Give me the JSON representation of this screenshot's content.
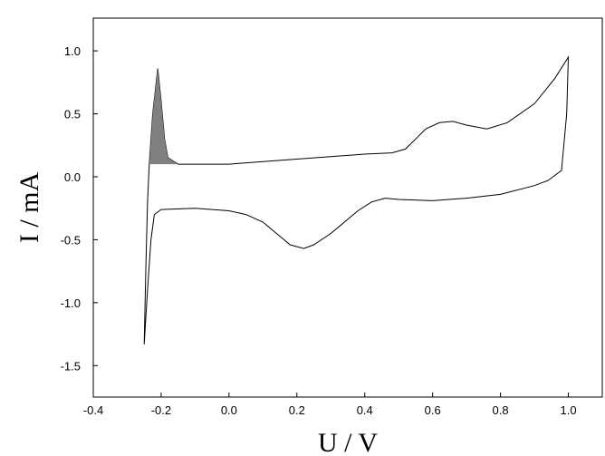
{
  "chart_data": {
    "type": "line",
    "xlabel": "U / V",
    "ylabel": "I / mA",
    "xlim": [
      -0.4,
      1.1
    ],
    "ylim": [
      -1.75,
      1.26
    ],
    "xticks": [
      -0.4,
      -0.2,
      {
        "value": 0,
        "label": "0.0"
      },
      0.2,
      0.4,
      0.6,
      0.8,
      {
        "value": 1,
        "label": "1.0"
      }
    ],
    "yticks": [
      -1.5,
      {
        "value": -1,
        "label": "-1.0"
      },
      -0.5,
      {
        "value": 0,
        "label": "0.0"
      },
      0.5,
      {
        "value": 1,
        "label": "1.0"
      }
    ],
    "series": [
      {
        "color": "#000000",
        "fill": false,
        "x": [
          -0.25,
          -0.245,
          -0.24,
          -0.235,
          -0.225,
          -0.21,
          -0.2,
          -0.19,
          -0.18,
          -0.15,
          -0.1,
          0.0,
          0.1,
          0.2,
          0.3,
          0.4,
          0.48,
          0.52,
          0.55,
          0.58,
          0.62,
          0.66,
          0.7,
          0.76,
          0.82,
          0.9,
          0.96,
          1.0,
          0.995,
          0.98,
          0.94,
          0.9,
          0.8,
          0.7,
          0.6,
          0.5,
          0.46,
          0.42,
          0.38,
          0.3,
          0.25,
          0.22,
          0.18,
          0.14,
          0.1,
          0.05,
          0.0,
          -0.1,
          -0.2,
          -0.22,
          -0.23,
          -0.24,
          -0.25
        ],
        "values": [
          -1.33,
          -0.7,
          -0.2,
          0.1,
          0.5,
          0.86,
          0.6,
          0.3,
          0.15,
          0.1,
          0.1,
          0.1,
          0.12,
          0.14,
          0.16,
          0.18,
          0.19,
          0.22,
          0.3,
          0.38,
          0.43,
          0.44,
          0.41,
          0.38,
          0.43,
          0.58,
          0.78,
          0.95,
          0.5,
          0.05,
          -0.03,
          -0.07,
          -0.14,
          -0.17,
          -0.19,
          -0.18,
          -0.17,
          -0.2,
          -0.27,
          -0.45,
          -0.54,
          -0.57,
          -0.54,
          -0.45,
          -0.36,
          -0.3,
          -0.27,
          -0.25,
          -0.26,
          -0.3,
          -0.5,
          -0.9,
          -1.33
        ]
      },
      {
        "color": "#808080",
        "fill": true,
        "x": [
          -0.235,
          -0.225,
          -0.21,
          -0.2,
          -0.19,
          -0.18,
          -0.15
        ],
        "values": [
          0.1,
          0.5,
          0.86,
          0.6,
          0.3,
          0.15,
          0.1
        ]
      }
    ]
  }
}
